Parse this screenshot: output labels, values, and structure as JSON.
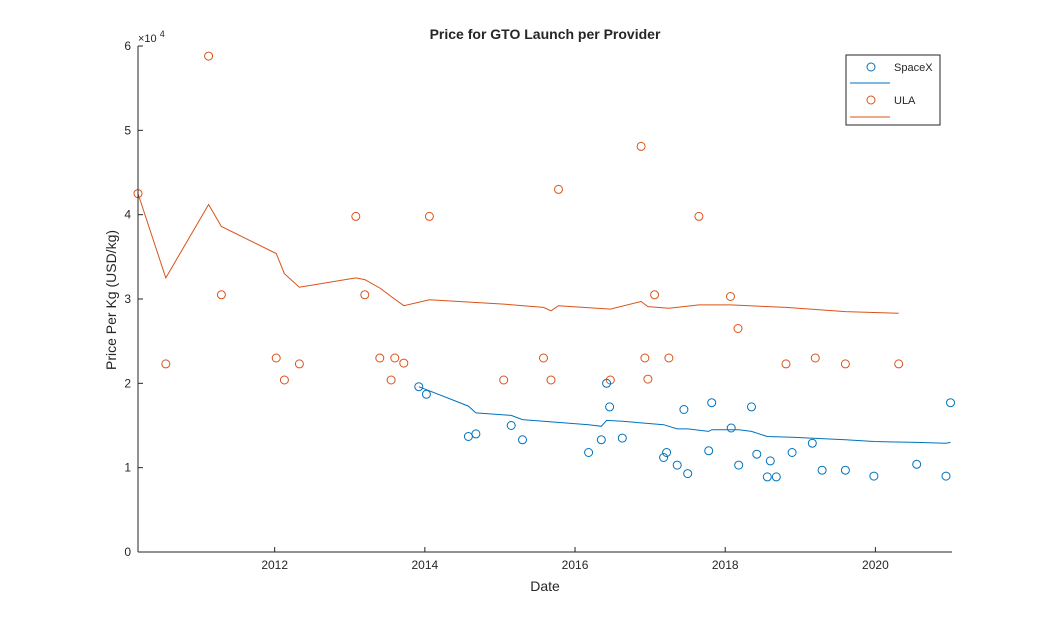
{
  "colors": {
    "spacex": "#0072BD",
    "ula": "#D95319",
    "axis": "#262626",
    "background": "#ffffff"
  },
  "chart_data": {
    "type": "scatter",
    "title": "Price for GTO Launch per Provider",
    "xlabel": "Date",
    "ylabel": "Price Per Kg (USD/kg)",
    "y_exponent_label": "×10",
    "y_exponent_power": "4",
    "xlim": [
      2010.18,
      2021.02
    ],
    "ylim": [
      0,
      60000
    ],
    "grid": false,
    "legend_position": "top-right",
    "x_ticks": [
      {
        "value": 2012,
        "label": "2012"
      },
      {
        "value": 2014,
        "label": "2014"
      },
      {
        "value": 2016,
        "label": "2016"
      },
      {
        "value": 2018,
        "label": "2018"
      },
      {
        "value": 2020,
        "label": "2020"
      }
    ],
    "y_ticks": [
      {
        "value": 0,
        "label": "0"
      },
      {
        "value": 10000,
        "label": "1"
      },
      {
        "value": 20000,
        "label": "2"
      },
      {
        "value": 30000,
        "label": "3"
      },
      {
        "value": 40000,
        "label": "4"
      },
      {
        "value": 50000,
        "label": "5"
      },
      {
        "value": 60000,
        "label": "6"
      }
    ],
    "series": [
      {
        "name": "SpaceX",
        "color_key": "spacex",
        "points": [
          [
            2013.92,
            19600
          ],
          [
            2014.02,
            18700
          ],
          [
            2014.58,
            13700
          ],
          [
            2014.68,
            14000
          ],
          [
            2015.15,
            15000
          ],
          [
            2015.3,
            13300
          ],
          [
            2016.18,
            11800
          ],
          [
            2016.35,
            13300
          ],
          [
            2016.42,
            20000
          ],
          [
            2016.46,
            17200
          ],
          [
            2016.63,
            13500
          ],
          [
            2017.18,
            11200
          ],
          [
            2017.22,
            11800
          ],
          [
            2017.36,
            10300
          ],
          [
            2017.45,
            16900
          ],
          [
            2017.5,
            9300
          ],
          [
            2017.78,
            12000
          ],
          [
            2017.82,
            17700
          ],
          [
            2018.08,
            14700
          ],
          [
            2018.18,
            10300
          ],
          [
            2018.35,
            17200
          ],
          [
            2018.42,
            11600
          ],
          [
            2018.56,
            8900
          ],
          [
            2018.6,
            10800
          ],
          [
            2018.68,
            8900
          ],
          [
            2018.89,
            11800
          ],
          [
            2019.16,
            12900
          ],
          [
            2019.29,
            9700
          ],
          [
            2019.6,
            9700
          ],
          [
            2019.98,
            9000
          ],
          [
            2020.55,
            10400
          ],
          [
            2020.94,
            9000
          ],
          [
            2021.0,
            17700
          ]
        ],
        "trend": [
          [
            2013.92,
            19600
          ],
          [
            2014.58,
            17300
          ],
          [
            2014.68,
            16500
          ],
          [
            2015.15,
            16200
          ],
          [
            2015.3,
            15700
          ],
          [
            2016.18,
            15100
          ],
          [
            2016.35,
            14900
          ],
          [
            2016.42,
            15600
          ],
          [
            2016.63,
            15500
          ],
          [
            2017.18,
            15100
          ],
          [
            2017.36,
            14600
          ],
          [
            2017.5,
            14600
          ],
          [
            2017.78,
            14300
          ],
          [
            2017.82,
            14500
          ],
          [
            2018.18,
            14500
          ],
          [
            2018.35,
            14300
          ],
          [
            2018.56,
            13700
          ],
          [
            2018.89,
            13600
          ],
          [
            2019.6,
            13300
          ],
          [
            2019.98,
            13100
          ],
          [
            2020.55,
            13000
          ],
          [
            2020.94,
            12900
          ],
          [
            2021.0,
            13000
          ]
        ]
      },
      {
        "name": "ULA",
        "color_key": "ula",
        "points": [
          [
            2010.18,
            42500
          ],
          [
            2010.55,
            22300
          ],
          [
            2011.12,
            58800
          ],
          [
            2011.29,
            30500
          ],
          [
            2012.02,
            23000
          ],
          [
            2012.13,
            20400
          ],
          [
            2012.33,
            22300
          ],
          [
            2013.08,
            39800
          ],
          [
            2013.2,
            30500
          ],
          [
            2013.4,
            23000
          ],
          [
            2013.55,
            20400
          ],
          [
            2013.6,
            23000
          ],
          [
            2013.72,
            22400
          ],
          [
            2014.06,
            39800
          ],
          [
            2015.05,
            20400
          ],
          [
            2015.58,
            23000
          ],
          [
            2015.68,
            20400
          ],
          [
            2015.78,
            43000
          ],
          [
            2016.47,
            20400
          ],
          [
            2016.88,
            48100
          ],
          [
            2016.93,
            23000
          ],
          [
            2016.97,
            20500
          ],
          [
            2017.06,
            30500
          ],
          [
            2017.25,
            23000
          ],
          [
            2017.65,
            39800
          ],
          [
            2018.07,
            30300
          ],
          [
            2018.17,
            26500
          ],
          [
            2018.81,
            22300
          ],
          [
            2019.2,
            23000
          ],
          [
            2019.6,
            22300
          ],
          [
            2020.31,
            22300
          ]
        ],
        "trend": [
          [
            2010.18,
            42500
          ],
          [
            2010.55,
            32500
          ],
          [
            2011.12,
            41200
          ],
          [
            2011.29,
            38600
          ],
          [
            2012.02,
            35400
          ],
          [
            2012.13,
            33000
          ],
          [
            2012.33,
            31400
          ],
          [
            2013.08,
            32500
          ],
          [
            2013.2,
            32300
          ],
          [
            2013.4,
            31300
          ],
          [
            2013.55,
            30300
          ],
          [
            2013.72,
            29200
          ],
          [
            2014.06,
            29900
          ],
          [
            2015.05,
            29400
          ],
          [
            2015.58,
            29000
          ],
          [
            2015.68,
            28600
          ],
          [
            2015.78,
            29200
          ],
          [
            2016.47,
            28800
          ],
          [
            2016.88,
            29700
          ],
          [
            2016.97,
            29100
          ],
          [
            2017.25,
            28900
          ],
          [
            2017.65,
            29300
          ],
          [
            2018.07,
            29300
          ],
          [
            2018.81,
            29000
          ],
          [
            2019.6,
            28500
          ],
          [
            2020.31,
            28300
          ]
        ]
      }
    ]
  }
}
